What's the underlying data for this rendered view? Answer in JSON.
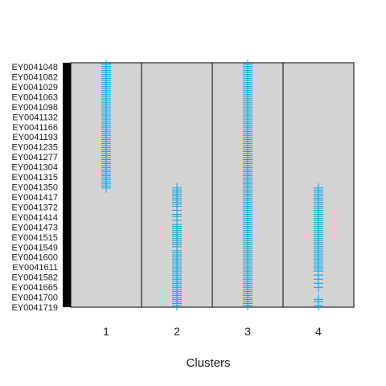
{
  "chart_data": {
    "type": "scatter",
    "title": "",
    "xlabel": "Clusters",
    "ylabel": "",
    "marker": "plus",
    "colors": {
      "marker": "#00a5e8",
      "panel_bg": "#d3d3d3",
      "border": "#000000"
    },
    "categories": [
      "1",
      "2",
      "3",
      "4"
    ],
    "y_tick_labels": [
      "EY0041048",
      "EY0041082",
      "EY0041029",
      "EY0041063",
      "EY0041098",
      "EY0041132",
      "EY0041166",
      "EY0041193",
      "EY0041235",
      "EY0041277",
      "EY0041304",
      "EY0041315",
      "EY0041350",
      "EY0041417",
      "EY0041372",
      "EY0041414",
      "EY0041473",
      "EY0041515",
      "EY0041549",
      "EY0041600",
      "EY0041611",
      "EY0041582",
      "EY0041665",
      "EY0041700",
      "EY0041719"
    ],
    "n_rows": 120,
    "clusters": [
      {
        "category": "1",
        "rows": [
          0,
          1,
          2,
          3,
          4,
          5,
          6,
          7,
          8,
          9,
          10,
          11,
          12,
          13,
          14,
          15,
          16,
          17,
          18,
          19,
          20,
          21,
          22,
          23,
          24,
          25,
          26,
          27,
          28,
          29,
          30,
          31,
          32,
          33,
          34,
          35,
          36,
          37,
          38,
          39,
          40,
          41,
          42,
          43,
          44,
          45,
          46,
          47,
          48,
          49,
          50,
          51,
          52,
          53,
          54,
          55,
          56,
          57,
          58,
          59,
          60,
          61
        ]
      },
      {
        "category": "2",
        "rows": [
          61,
          62,
          63,
          64,
          65,
          66,
          67,
          68,
          69,
          70,
          72,
          74,
          75,
          77,
          79,
          80,
          81,
          82,
          83,
          84,
          85,
          86,
          87,
          88,
          89,
          90,
          92,
          93,
          94,
          95,
          96,
          97,
          98,
          99,
          100,
          101,
          102,
          103,
          104,
          105,
          106,
          107,
          108,
          109,
          110,
          111,
          112,
          113,
          114,
          115,
          116,
          117,
          118,
          119
        ]
      },
      {
        "category": "3",
        "rows": [
          0,
          1,
          2,
          3,
          4,
          5,
          6,
          7,
          8,
          9,
          10,
          11,
          12,
          13,
          14,
          15,
          16,
          17,
          18,
          19,
          20,
          21,
          22,
          23,
          24,
          25,
          26,
          27,
          28,
          29,
          30,
          31,
          32,
          33,
          34,
          35,
          36,
          37,
          38,
          39,
          40,
          41,
          42,
          43,
          44,
          45,
          46,
          47,
          48,
          49,
          50,
          51,
          52,
          53,
          54,
          55,
          56,
          57,
          58,
          59,
          60,
          61,
          62,
          63,
          64,
          65,
          66,
          67,
          68,
          69,
          70,
          71,
          72,
          73,
          74,
          75,
          76,
          77,
          78,
          79,
          80,
          81,
          82,
          83,
          84,
          85,
          86,
          87,
          88,
          89,
          90,
          91,
          92,
          93,
          94,
          95,
          96,
          97,
          98,
          99,
          100,
          101,
          102,
          103,
          104,
          105,
          106,
          107,
          108,
          109,
          110,
          111,
          112,
          113,
          114,
          115,
          116,
          117,
          118,
          119
        ]
      },
      {
        "category": "4",
        "rows": [
          61,
          62,
          63,
          64,
          65,
          66,
          67,
          68,
          69,
          70,
          71,
          72,
          73,
          74,
          75,
          76,
          77,
          78,
          79,
          80,
          81,
          82,
          83,
          84,
          85,
          86,
          87,
          88,
          89,
          90,
          91,
          92,
          93,
          94,
          95,
          96,
          97,
          98,
          99,
          100,
          101,
          102,
          104,
          106,
          108,
          110,
          116,
          117,
          119
        ]
      }
    ]
  }
}
